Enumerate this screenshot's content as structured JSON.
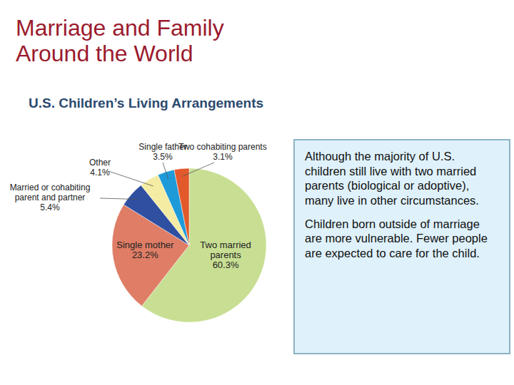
{
  "title": "Marriage and Family Around the World",
  "chart_data": {
    "type": "pie",
    "title": "U.S. Children’s Living Arrangements",
    "categories": [
      "Two married parents",
      "Single mother",
      "Married or cohabiting parent and partner",
      "Other",
      "Single father",
      "Two cohabiting parents"
    ],
    "values": [
      60.3,
      23.2,
      5.4,
      4.1,
      3.5,
      3.1
    ],
    "value_labels": [
      "60.3%",
      "23.2%",
      "5.4%",
      "4.1%",
      "3.5%",
      "3.1%"
    ],
    "colors": [
      "#c8df93",
      "#df7d66",
      "#2f4fa0",
      "#f4eca2",
      "#1f9ad8",
      "#e2592b"
    ],
    "data_labels": true
  },
  "text_box": {
    "paragraphs": [
      "Although the majority of U.S. children still live with two married parents (biological or adoptive), many live in other circumstances.",
      "Children born outside of marriage are more vulnerable. Fewer people are expected to care for the child."
    ]
  }
}
